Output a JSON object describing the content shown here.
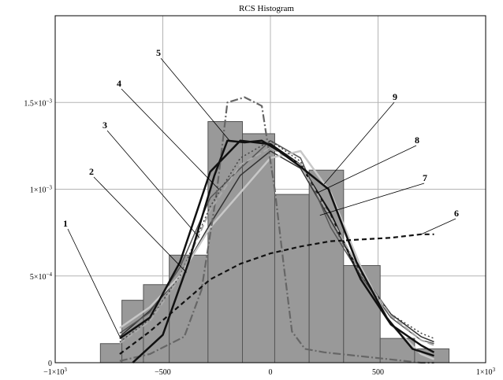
{
  "chart_data": {
    "type": "bar",
    "title": "RCS Histogram",
    "xlabel": "",
    "ylabel": "",
    "xlim": [
      -1000,
      1000
    ],
    "ylim": [
      0,
      0.002
    ],
    "grid": true,
    "x_ticks": [
      {
        "value": -1000,
        "base": "−1×10",
        "exp": "3"
      },
      {
        "value": -500,
        "base": "−500",
        "exp": ""
      },
      {
        "value": 0,
        "base": "0",
        "exp": ""
      },
      {
        "value": 500,
        "base": "500",
        "exp": ""
      },
      {
        "value": 1000,
        "base": "1×10",
        "exp": "3"
      }
    ],
    "y_ticks": [
      {
        "value": 0,
        "base": "0",
        "exp": ""
      },
      {
        "value": 0.0005,
        "base": "5×10",
        "exp": "−4"
      },
      {
        "value": 0.001,
        "base": "1×10",
        "exp": "−3"
      },
      {
        "value": 0.0015,
        "base": "1.5×10",
        "exp": "−3"
      }
    ],
    "histogram": {
      "color": "#999999",
      "bins": [
        {
          "x0": -790,
          "x1": -690,
          "value": 0.00011
        },
        {
          "x0": -690,
          "x1": -590,
          "value": 0.00036
        },
        {
          "x0": -590,
          "x1": -470,
          "value": 0.00045
        },
        {
          "x0": -470,
          "x1": -290,
          "value": 0.00062
        },
        {
          "x0": -290,
          "x1": -130,
          "value": 0.00139
        },
        {
          "x0": -130,
          "x1": 20,
          "value": 0.00132
        },
        {
          "x0": 20,
          "x1": 180,
          "value": 0.00097
        },
        {
          "x0": 180,
          "x1": 340,
          "value": 0.00111
        },
        {
          "x0": 340,
          "x1": 510,
          "value": 0.00056
        },
        {
          "x0": 510,
          "x1": 670,
          "value": 0.00014
        },
        {
          "x0": 670,
          "x1": 830,
          "value": 8e-05
        }
      ]
    },
    "series": [
      {
        "label": "1",
        "color": "#333333",
        "width": 1.5,
        "dash": "",
        "x": [
          -700,
          -560,
          -420,
          -280,
          -140,
          0,
          140,
          280,
          420,
          560,
          700,
          760
        ],
        "y": [
          0.00015,
          0.0003,
          0.0005,
          0.0008,
          0.00108,
          0.00122,
          0.00112,
          0.00082,
          0.00052,
          0.00028,
          0.00015,
          0.00012
        ]
      },
      {
        "label": "2",
        "color": "#555555",
        "width": 1.5,
        "dash": "",
        "x": [
          -700,
          -560,
          -420,
          -280,
          -140,
          0,
          140,
          280,
          420,
          560,
          700,
          760
        ],
        "y": [
          0.00017,
          0.00029,
          0.00055,
          0.00095,
          0.00112,
          0.00128,
          0.00118,
          0.00078,
          0.0005,
          0.00026,
          0.00013,
          0.00011
        ]
      },
      {
        "label": "3",
        "color": "#c8c8c8",
        "width": 2.5,
        "dash": "",
        "x": [
          -700,
          -560,
          -420,
          -280,
          -140,
          0,
          140,
          280,
          420,
          560,
          700,
          760
        ],
        "y": [
          0.0002,
          0.00032,
          0.0005,
          0.00078,
          0.00098,
          0.00118,
          0.00122,
          0.00098,
          0.00055,
          0.00022,
          5e-05,
          2e-05
        ]
      },
      {
        "label": "4",
        "color": "#111111",
        "width": 2.5,
        "dash": "",
        "x": [
          -700,
          -560,
          -420,
          -280,
          -140,
          0,
          140,
          280,
          420,
          560,
          700,
          760
        ],
        "y": [
          0.00014,
          0.00026,
          0.00058,
          0.0011,
          0.00128,
          0.00126,
          0.00114,
          0.00086,
          0.00048,
          0.00022,
          0.0001,
          6e-05
        ]
      },
      {
        "label": "5",
        "color": "#666666",
        "width": 2.2,
        "dash": "10,3,2,3",
        "x": [
          -700,
          -560,
          -480,
          -400,
          -320,
          -250,
          -200,
          -120,
          -40,
          20,
          60,
          100,
          160,
          250,
          400,
          550,
          700,
          760
        ],
        "y": [
          1e-05,
          5e-05,
          0.0001,
          0.00015,
          0.00042,
          0.00098,
          0.0015,
          0.00153,
          0.00148,
          0.001,
          0.00058,
          0.00018,
          8e-05,
          6e-05,
          4e-05,
          2e-05,
          0.0,
          0.0
        ]
      },
      {
        "label": "6",
        "color": "#111111",
        "width": 2.2,
        "dash": "6,4",
        "x": [
          -700,
          -560,
          -420,
          -280,
          -140,
          0,
          140,
          280,
          420,
          560,
          700,
          760
        ],
        "y": [
          5e-05,
          0.00018,
          0.00033,
          0.00048,
          0.00057,
          0.00063,
          0.00067,
          0.0007,
          0.00071,
          0.00072,
          0.00074,
          0.00074
        ]
      },
      {
        "label": "7",
        "color": "#444444",
        "width": 1.5,
        "dash": "2,3",
        "x": [
          -700,
          -560,
          -420,
          -280,
          -140,
          0,
          140,
          280,
          420,
          560,
          700,
          760
        ],
        "y": [
          0.00012,
          0.00025,
          0.0005,
          0.0009,
          0.00118,
          0.00128,
          0.00116,
          0.00082,
          0.0005,
          0.00028,
          0.00017,
          0.00014
        ]
      },
      {
        "label": "8",
        "color": "#aaaaaa",
        "width": 2.0,
        "dash": "8,4",
        "x": [
          -700,
          -560,
          -420,
          -280,
          -140,
          0,
          140,
          280,
          420,
          560,
          700,
          760
        ],
        "y": [
          0.00011,
          0.00024,
          0.00049,
          0.00088,
          0.00114,
          0.00124,
          0.00114,
          0.00084,
          0.00052,
          0.00027,
          0.00013,
          0.0001
        ]
      },
      {
        "label": "9",
        "color": "#111111",
        "width": 2.5,
        "dash": "",
        "x": [
          -640,
          -500,
          -380,
          -260,
          -200,
          -120,
          -40,
          40,
          150,
          270,
          400,
          540,
          660,
          760
        ],
        "y": [
          0.0,
          0.00016,
          0.00058,
          0.00108,
          0.00128,
          0.00127,
          0.00128,
          0.00122,
          0.00112,
          0.001,
          0.00058,
          0.00026,
          8e-05,
          4e-05
        ]
      }
    ],
    "annotations": [
      {
        "label": "1",
        "anchor_x": -700,
        "anchor_y": 0.00015
      },
      {
        "label": "2",
        "anchor_x": -390,
        "anchor_y": 0.00052
      },
      {
        "label": "3",
        "anchor_x": -330,
        "anchor_y": 0.00072
      },
      {
        "label": "4",
        "anchor_x": -240,
        "anchor_y": 0.001
      },
      {
        "label": "5",
        "anchor_x": -190,
        "anchor_y": 0.00128
      },
      {
        "label": "6",
        "anchor_x": 700,
        "anchor_y": 0.00074
      },
      {
        "label": "7",
        "anchor_x": 230,
        "anchor_y": 0.00085
      },
      {
        "label": "8",
        "anchor_x": 220,
        "anchor_y": 0.00098
      },
      {
        "label": "9",
        "anchor_x": 250,
        "anchor_y": 0.00103
      }
    ]
  }
}
